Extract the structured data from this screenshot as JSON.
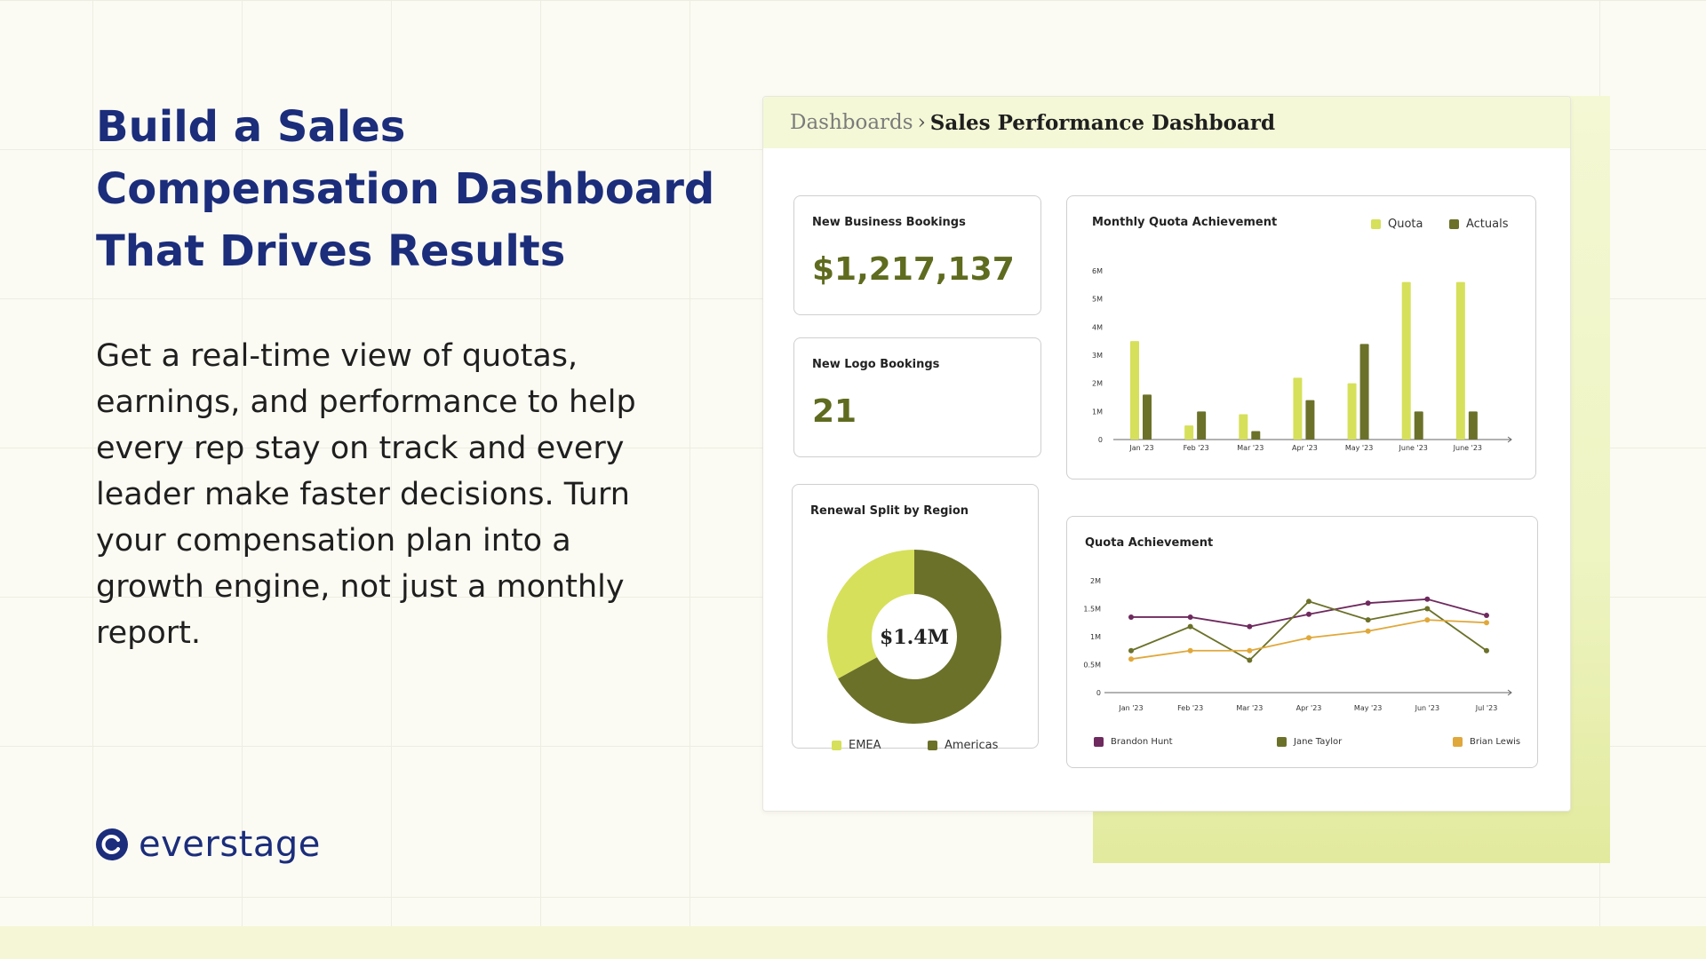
{
  "hero": {
    "title": "Build a Sales Compensation Dashboard That Drives Results",
    "body": "Get a real-time view of quotas, earnings, and performance to help every rep stay on track and every leader make faster decisions. Turn your compensation plan into a growth engine, not just a monthly report."
  },
  "brand": {
    "name": "everstage",
    "color": "#1b2d7b",
    "icon": "everstage-logo-icon"
  },
  "dashboard": {
    "breadcrumb_root": "Dashboards",
    "breadcrumb_sep": "›",
    "breadcrumb_current": "Sales Performance Dashboard"
  },
  "kpis": {
    "new_business": {
      "label": "New Business Bookings",
      "value": "$1,217,137"
    },
    "new_logo": {
      "label": "New Logo Bookings",
      "value": "21"
    }
  },
  "colors": {
    "light_green": "#d6e05a",
    "dark_olive": "#6b7129",
    "purple": "#6e2a5e",
    "gold": "#e0a83a",
    "olive_value": "#5f6b1f"
  },
  "chart_data": [
    {
      "type": "bar",
      "title": "Monthly Quota Achievement",
      "categories": [
        "Jan '23",
        "Feb '23",
        "Mar '23",
        "Apr '23",
        "May '23",
        "June '23",
        "June '23"
      ],
      "yticks": [
        "0",
        "1M",
        "2M",
        "3M",
        "4M",
        "5M",
        "6M"
      ],
      "ylim": [
        0,
        6
      ],
      "series": [
        {
          "name": "Quota",
          "color": "#d6e05a",
          "values": [
            3.5,
            0.5,
            0.9,
            2.2,
            2.0,
            5.6,
            5.6
          ]
        },
        {
          "name": "Actuals",
          "color": "#6b7129",
          "values": [
            1.6,
            1.0,
            0.3,
            1.4,
            3.4,
            1.0,
            1.0
          ]
        }
      ],
      "legend": "top-right"
    },
    {
      "type": "pie",
      "title": "Renewal Split by Region",
      "center_label": "$1.4M",
      "slices": [
        {
          "name": "EMEA",
          "color": "#d6e05a",
          "value": 0.33
        },
        {
          "name": "Americas",
          "color": "#6b7129",
          "value": 0.67
        }
      ],
      "legend": "bottom"
    },
    {
      "type": "line",
      "title": "Quota Achievement",
      "categories": [
        "Jan '23",
        "Feb '23",
        "Mar '23",
        "Apr '23",
        "May '23",
        "Jun '23",
        "Jul '23"
      ],
      "yticks": [
        "0",
        "0.5M",
        "1M",
        "1.5M",
        "2M"
      ],
      "ylim": [
        0,
        2
      ],
      "series": [
        {
          "name": "Brandon Hunt",
          "color": "#6e2a5e",
          "values": [
            1.35,
            1.35,
            1.18,
            1.4,
            1.6,
            1.67,
            1.38
          ]
        },
        {
          "name": "Jane Taylor",
          "color": "#6b7129",
          "values": [
            0.75,
            1.18,
            0.58,
            1.63,
            1.3,
            1.5,
            0.75
          ]
        },
        {
          "name": "Brian Lewis",
          "color": "#e0a83a",
          "values": [
            0.6,
            0.75,
            0.75,
            0.98,
            1.1,
            1.3,
            1.25
          ]
        }
      ],
      "legend": "bottom"
    }
  ]
}
